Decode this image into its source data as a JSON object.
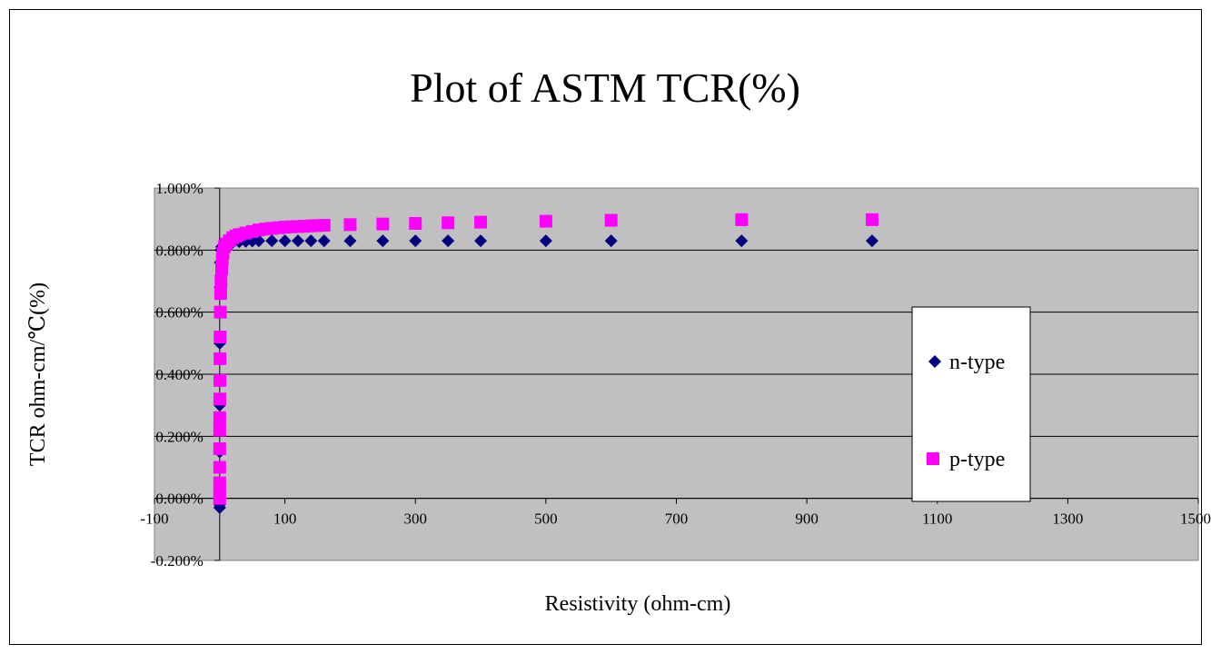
{
  "chart_data": {
    "type": "scatter",
    "title": "Plot of ASTM TCR(%)",
    "xlabel": "Resistivity (ohm-cm)",
    "ylabel": "TCR ohm-cm/℃(%)",
    "xlim": [
      -100,
      1500
    ],
    "ylim": [
      -0.2,
      1.0
    ],
    "x_ticks": [
      -100,
      100,
      300,
      500,
      700,
      900,
      1100,
      1300,
      1500
    ],
    "x_tick_labels": [
      "-100",
      "100",
      "300",
      "500",
      "700",
      "900",
      "1100",
      "1300",
      "1500"
    ],
    "y_ticks": [
      -0.2,
      0.0,
      0.2,
      0.4,
      0.6,
      0.8,
      1.0
    ],
    "y_tick_labels": [
      "-0.200%",
      "0.000%",
      "0.200%",
      "0.400%",
      "0.600%",
      "0.800%",
      "1.000%"
    ],
    "grid": "horizontal",
    "plot_background": "#c0c0c0",
    "legend": {
      "position": "right",
      "entries": [
        "n-type",
        "p-type"
      ]
    },
    "series": [
      {
        "name": "n-type",
        "marker": "diamond",
        "color": "#000080",
        "x": [
          0.001,
          0.002,
          0.005,
          0.01,
          0.02,
          0.05,
          0.1,
          0.2,
          0.5,
          1,
          2,
          3,
          5,
          10,
          20,
          30,
          40,
          50,
          60,
          80,
          100,
          120,
          140,
          160,
          200,
          250,
          300,
          350,
          400,
          500,
          600,
          800,
          1000
        ],
        "y": [
          -0.03,
          -0.02,
          -0.015,
          0.0,
          0.05,
          0.15,
          0.3,
          0.5,
          0.68,
          0.76,
          0.8,
          0.81,
          0.815,
          0.82,
          0.825,
          0.827,
          0.828,
          0.829,
          0.83,
          0.83,
          0.83,
          0.83,
          0.83,
          0.83,
          0.83,
          0.83,
          0.83,
          0.83,
          0.83,
          0.83,
          0.83,
          0.83,
          0.83
        ]
      },
      {
        "name": "p-type",
        "marker": "square",
        "color": "#ff00ff",
        "x": [
          0.001,
          0.002,
          0.005,
          0.01,
          0.02,
          0.05,
          0.1,
          0.2,
          0.3,
          0.5,
          0.7,
          1,
          1.5,
          2,
          3,
          4,
          5,
          7,
          10,
          15,
          20,
          25,
          30,
          40,
          50,
          60,
          70,
          80,
          90,
          100,
          110,
          120,
          130,
          140,
          150,
          160,
          200,
          250,
          300,
          350,
          400,
          500,
          600,
          800,
          1000
        ],
        "y": [
          0.0,
          0.02,
          0.05,
          0.1,
          0.16,
          0.22,
          0.26,
          0.32,
          0.38,
          0.45,
          0.52,
          0.6,
          0.66,
          0.7,
          0.74,
          0.77,
          0.79,
          0.81,
          0.82,
          0.83,
          0.84,
          0.845,
          0.85,
          0.855,
          0.86,
          0.865,
          0.868,
          0.87,
          0.872,
          0.874,
          0.875,
          0.876,
          0.877,
          0.878,
          0.879,
          0.88,
          0.882,
          0.884,
          0.886,
          0.888,
          0.89,
          0.893,
          0.896,
          0.898,
          0.898
        ]
      }
    ]
  }
}
